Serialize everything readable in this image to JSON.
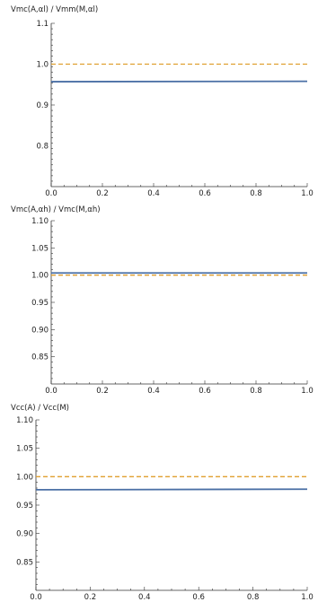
{
  "chart_data": [
    {
      "type": "line",
      "title": "",
      "xlabel": "",
      "ylabel": "Vmc(A,αl) / Vmm(M,αl)",
      "xlim": [
        0,
        1
      ],
      "ylim": [
        0.7,
        1.1
      ],
      "x_ticks": [
        0.0,
        0.2,
        0.4,
        0.6,
        0.8,
        1.0
      ],
      "x_tick_labels": [
        "0.0",
        "0.2",
        "0.4",
        "0.6",
        "0.8",
        "1.0"
      ],
      "y_ticks": [
        0.8,
        0.9,
        1.0,
        1.1
      ],
      "y_tick_labels": [
        "0.8",
        "0.9",
        "1.0",
        "1.1"
      ],
      "grid": false,
      "series": [
        {
          "x": [
            0,
            1
          ],
          "y": [
            0.957,
            0.958
          ],
          "color": "#4a6fa5",
          "style": "solid"
        },
        {
          "x": [
            0,
            1
          ],
          "y": [
            1.0,
            1.0
          ],
          "color": "#e0a030",
          "style": "dashed"
        }
      ]
    },
    {
      "type": "line",
      "title": "",
      "xlabel": "",
      "ylabel": "Vmc(A,αh) / Vmc(M,αh)",
      "xlim": [
        0,
        1
      ],
      "ylim": [
        0.8,
        1.1
      ],
      "x_ticks": [
        0.0,
        0.2,
        0.4,
        0.6,
        0.8,
        1.0
      ],
      "x_tick_labels": [
        "0.0",
        "0.2",
        "0.4",
        "0.6",
        "0.8",
        "1.0"
      ],
      "y_ticks": [
        0.85,
        0.9,
        0.95,
        1.0,
        1.05,
        1.1
      ],
      "y_tick_labels": [
        "0.85",
        "0.90",
        "0.95",
        "1.00",
        "1.05",
        "1.10"
      ],
      "grid": false,
      "series": [
        {
          "x": [
            0,
            1
          ],
          "y": [
            1.004,
            1.004
          ],
          "color": "#4a6fa5",
          "style": "solid"
        },
        {
          "x": [
            0,
            1
          ],
          "y": [
            1.0,
            1.0
          ],
          "color": "#e0a030",
          "style": "dashed"
        }
      ]
    },
    {
      "type": "line",
      "title": "",
      "xlabel": "",
      "ylabel": "Vcc(A) / Vcc(M)",
      "xlim": [
        0,
        1
      ],
      "ylim": [
        0.8,
        1.1
      ],
      "x_ticks": [
        0.0,
        0.2,
        0.4,
        0.6,
        0.8,
        1.0
      ],
      "x_tick_labels": [
        "0.0",
        "0.2",
        "0.4",
        "0.6",
        "0.8",
        "1.0"
      ],
      "y_ticks": [
        0.85,
        0.9,
        0.95,
        1.0,
        1.05,
        1.1
      ],
      "y_tick_labels": [
        "0.85",
        "0.90",
        "0.95",
        "1.00",
        "1.05",
        "1.10"
      ],
      "grid": false,
      "series": [
        {
          "x": [
            0,
            1
          ],
          "y": [
            0.977,
            0.978
          ],
          "color": "#4a6fa5",
          "style": "solid"
        },
        {
          "x": [
            0,
            1
          ],
          "y": [
            1.0,
            1.0
          ],
          "color": "#e0a030",
          "style": "dashed"
        }
      ]
    }
  ]
}
